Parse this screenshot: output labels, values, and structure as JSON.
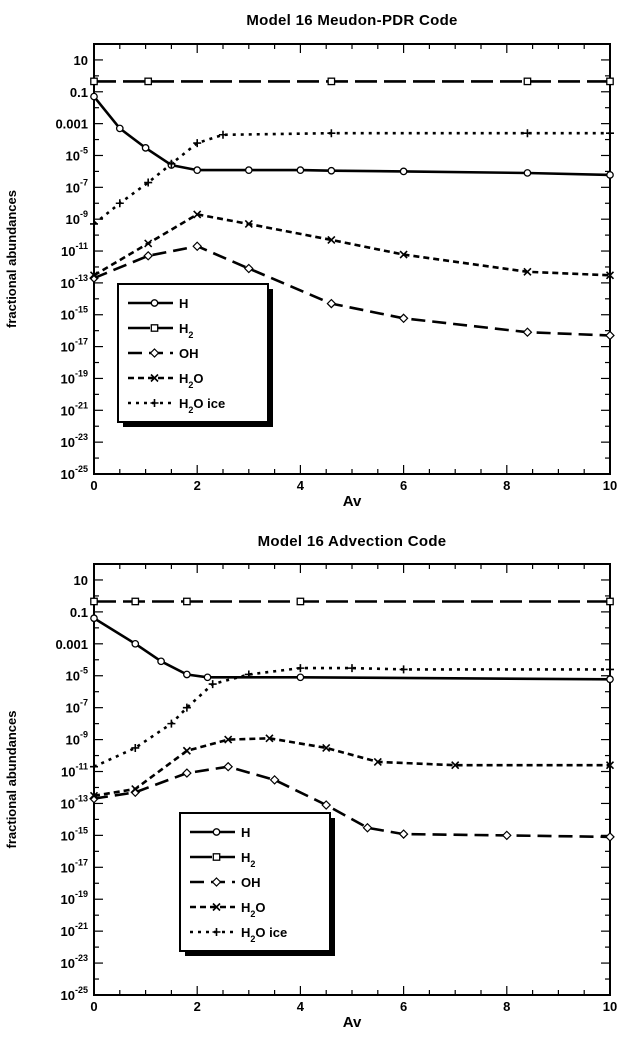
{
  "chart_data": [
    {
      "type": "line",
      "title": "Model 16 Meudon-PDR Code",
      "xlabel": "Av",
      "ylabel": "fractional abundances",
      "xlim": [
        0,
        10
      ],
      "ylim_log10": [
        -25,
        2
      ],
      "yscale": "log",
      "x_ticks": [
        "0",
        "2",
        "4",
        "6",
        "8",
        "10"
      ],
      "y_ticks": [
        "10",
        "0.1",
        "0.001",
        "10^-5",
        "10^-7",
        "10^-9",
        "10^-11",
        "10^-13",
        "10^-15",
        "10^-17",
        "10^-19",
        "10^-21",
        "10^-23",
        "10^-25"
      ],
      "legend_position": "bottom-left",
      "series": [
        {
          "name": "H",
          "style": "solid",
          "marker": "circle",
          "x": [
            0,
            0.5,
            1.0,
            1.5,
            2.0,
            3,
            4,
            4.6,
            6,
            8.4,
            10
          ],
          "y": [
            "5e-2",
            "5e-4",
            "3e-5",
            "2.5e-6",
            "1.2e-6",
            "1.2e-6",
            "1.2e-6",
            "1.1e-6",
            "1e-6",
            "8e-7",
            "6e-7"
          ]
        },
        {
          "name": "H2",
          "style": "longdash",
          "marker": "square",
          "x": [
            0,
            1.05,
            4.6,
            8.4,
            10
          ],
          "y": [
            "0.45",
            "0.45",
            "0.45",
            "0.45",
            "0.45"
          ]
        },
        {
          "name": "OH",
          "style": "dash",
          "marker": "diamond",
          "x": [
            0,
            1.05,
            2.0,
            3.0,
            4.6,
            6.0,
            8.4,
            10
          ],
          "y": [
            "2e-13",
            "5e-12",
            "2e-11",
            "8e-13",
            "5e-15",
            "6e-16",
            "8e-17",
            "5e-17"
          ]
        },
        {
          "name": "H2O",
          "style": "shortdash",
          "marker": "x",
          "x": [
            0,
            1.05,
            2.0,
            3.0,
            4.6,
            6.0,
            8.4,
            10
          ],
          "y": [
            "3e-13",
            "3e-11",
            "2e-9",
            "5e-10",
            "5e-11",
            "6e-12",
            "5e-13",
            "3e-13"
          ]
        },
        {
          "name": "H2O ice",
          "style": "dotted",
          "marker": "plus",
          "x": [
            0,
            0.5,
            1.05,
            1.5,
            2.0,
            2.5,
            4.6,
            8.4,
            10
          ],
          "y": [
            "5e-10",
            "1e-8",
            "2e-7",
            "3e-6",
            "6e-5",
            "2e-4",
            "2.5e-4",
            "2.5e-4",
            "2.5e-4"
          ]
        }
      ]
    },
    {
      "type": "line",
      "title": "Model 16 Advection Code",
      "xlabel": "Av",
      "ylabel": "fractional abundances",
      "xlim": [
        0,
        10
      ],
      "ylim_log10": [
        -25,
        2
      ],
      "yscale": "log",
      "x_ticks": [
        "0",
        "2",
        "4",
        "6",
        "8",
        "10"
      ],
      "y_ticks": [
        "10",
        "0.1",
        "0.001",
        "10^-5",
        "10^-7",
        "10^-9",
        "10^-11",
        "10^-13",
        "10^-15",
        "10^-17",
        "10^-19",
        "10^-21",
        "10^-23",
        "10^-25"
      ],
      "legend_position": "bottom-left",
      "series": [
        {
          "name": "H",
          "style": "solid",
          "marker": "circle",
          "x": [
            0,
            0.8,
            1.3,
            1.8,
            2.2,
            4,
            10
          ],
          "y": [
            "4e-2",
            "1e-3",
            "8e-5",
            "1.2e-5",
            "8e-6",
            "8e-6",
            "6e-6"
          ]
        },
        {
          "name": "H2",
          "style": "longdash",
          "marker": "square",
          "x": [
            0,
            0.8,
            1.8,
            4,
            10
          ],
          "y": [
            "0.45",
            "0.45",
            "0.45",
            "0.45",
            "0.45"
          ]
        },
        {
          "name": "OH",
          "style": "dash",
          "marker": "diamond",
          "x": [
            0,
            0.8,
            1.8,
            2.6,
            3.5,
            4.5,
            5.3,
            6.0,
            8,
            10
          ],
          "y": [
            "2e-13",
            "5e-13",
            "8e-12",
            "2e-11",
            "3e-12",
            "8e-14",
            "3e-15",
            "1.2e-15",
            "1e-15",
            "8e-16"
          ]
        },
        {
          "name": "H2O",
          "style": "shortdash",
          "marker": "x",
          "x": [
            0,
            0.8,
            1.8,
            2.6,
            3.4,
            4.5,
            5.5,
            7,
            10
          ],
          "y": [
            "3e-13",
            "8e-13",
            "2e-10",
            "1e-9",
            "1.2e-9",
            "3e-10",
            "4e-11",
            "2.5e-11",
            "2.5e-11"
          ]
        },
        {
          "name": "H2O ice",
          "style": "dotted",
          "marker": "plus",
          "x": [
            0,
            0.8,
            1.5,
            1.8,
            2.3,
            3,
            4,
            5,
            6,
            10
          ],
          "y": [
            "2e-11",
            "3e-10",
            "1e-8",
            "1e-7",
            "3e-6",
            "1.2e-5",
            "3e-5",
            "3e-5",
            "2.5e-5",
            "2.5e-5"
          ]
        }
      ]
    }
  ]
}
